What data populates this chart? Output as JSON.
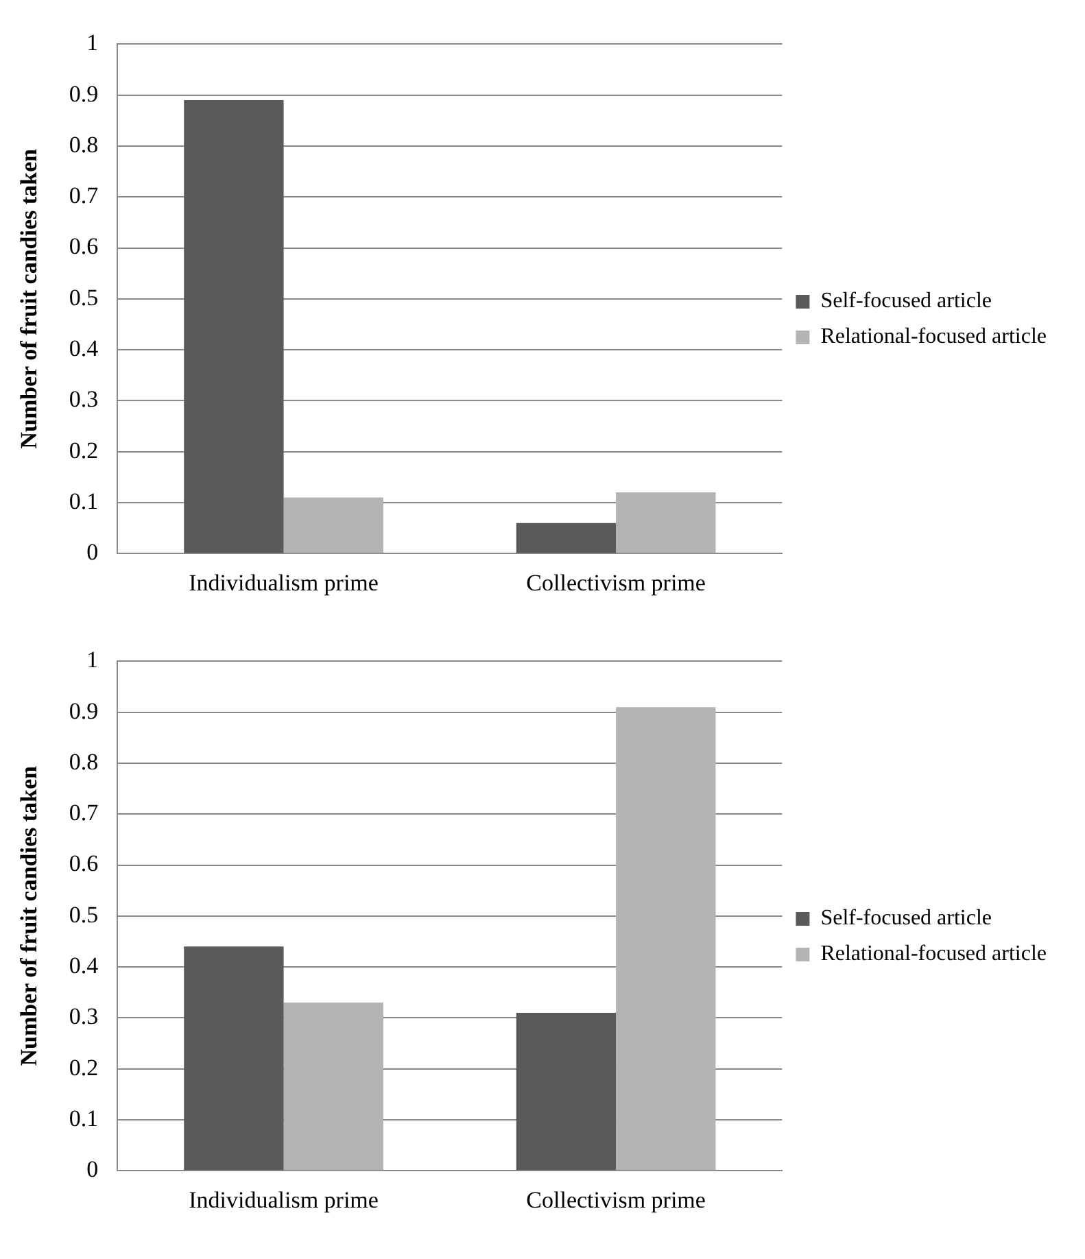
{
  "chart_data": [
    {
      "type": "bar",
      "ylabel": "Number of fruit candies taken",
      "categories": [
        "Individualism prime",
        "Collectivism prime"
      ],
      "series": [
        {
          "name": "Self-focused article",
          "color": "#5a5a5a",
          "values": [
            0.89,
            0.06
          ]
        },
        {
          "name": "Relational-focused article",
          "color": "#b3b3b3",
          "values": [
            0.11,
            0.12
          ]
        }
      ],
      "ylim": [
        0,
        1
      ],
      "yticks": [
        0,
        0.1,
        0.2,
        0.3,
        0.4,
        0.5,
        0.6,
        0.7,
        0.8,
        0.9,
        1
      ],
      "grid": "y",
      "legend": "right"
    },
    {
      "type": "bar",
      "ylabel": "Number of fruit candies taken",
      "categories": [
        "Individualism prime",
        "Collectivism prime"
      ],
      "series": [
        {
          "name": "Self-focused article",
          "color": "#5a5a5a",
          "values": [
            0.44,
            0.31
          ]
        },
        {
          "name": "Relational-focused article",
          "color": "#b3b3b3",
          "values": [
            0.33,
            0.91
          ]
        }
      ],
      "ylim": [
        0,
        1
      ],
      "yticks": [
        0,
        0.1,
        0.2,
        0.3,
        0.4,
        0.5,
        0.6,
        0.7,
        0.8,
        0.9,
        1
      ],
      "grid": "y",
      "legend": "right"
    }
  ]
}
